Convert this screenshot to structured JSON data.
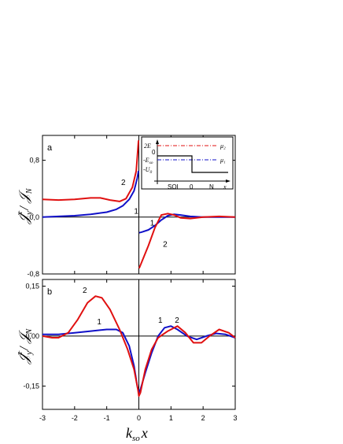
{
  "chart_data": [
    {
      "panel": "a",
      "type": "line",
      "ylabel": "𝒥ʸˣ / 𝒥_N",
      "xlim": [
        -3,
        3
      ],
      "ylim": [
        -0.8,
        1.15
      ],
      "yticks": [
        "-0,8",
        "0,0",
        "0,8"
      ],
      "series": [
        {
          "name": "1",
          "color": "#1010c8",
          "points": [
            [
              -3,
              0.0
            ],
            [
              -2.5,
              0.01
            ],
            [
              -2.0,
              0.02
            ],
            [
              -1.5,
              0.04
            ],
            [
              -1.0,
              0.07
            ],
            [
              -0.7,
              0.11
            ],
            [
              -0.5,
              0.16
            ],
            [
              -0.3,
              0.25
            ],
            [
              -0.15,
              0.37
            ],
            [
              -0.05,
              0.55
            ],
            [
              -0.01,
              0.65
            ],
            [
              0.01,
              -0.22
            ],
            [
              0.1,
              -0.21
            ],
            [
              0.3,
              -0.18
            ],
            [
              0.5,
              -0.12
            ],
            [
              0.7,
              -0.04
            ],
            [
              0.9,
              0.02
            ],
            [
              1.1,
              0.04
            ],
            [
              1.3,
              0.03
            ],
            [
              1.6,
              0.01
            ],
            [
              2.0,
              0.0
            ],
            [
              2.5,
              0.0
            ],
            [
              3.0,
              0.0
            ]
          ]
        },
        {
          "name": "2",
          "color": "#e01010",
          "points": [
            [
              -3,
              0.25
            ],
            [
              -2.5,
              0.24
            ],
            [
              -2.0,
              0.25
            ],
            [
              -1.5,
              0.27
            ],
            [
              -1.2,
              0.27
            ],
            [
              -0.9,
              0.24
            ],
            [
              -0.6,
              0.22
            ],
            [
              -0.4,
              0.26
            ],
            [
              -0.2,
              0.42
            ],
            [
              -0.08,
              0.65
            ],
            [
              -0.01,
              1.08
            ],
            [
              0.01,
              -0.72
            ],
            [
              0.1,
              -0.62
            ],
            [
              0.3,
              -0.4
            ],
            [
              0.5,
              -0.15
            ],
            [
              0.7,
              0.03
            ],
            [
              0.9,
              0.05
            ],
            [
              1.1,
              0.03
            ],
            [
              1.3,
              -0.01
            ],
            [
              1.6,
              -0.02
            ],
            [
              2.0,
              0.0
            ],
            [
              2.5,
              0.01
            ],
            [
              3.0,
              0.0
            ]
          ]
        }
      ],
      "curve_labels": [
        {
          "text": "2",
          "x": -0.55,
          "y": 0.45
        },
        {
          "text": "1",
          "x": -0.15,
          "y": 0.05
        },
        {
          "text": "1",
          "x": 0.35,
          "y": -0.12
        },
        {
          "text": "2",
          "x": 0.75,
          "y": -0.42
        }
      ],
      "inset": {
        "levels": [
          "2E",
          "0",
          "-E",
          "-U"
        ],
        "level_subscripts": [
          "",
          "",
          "so",
          "0"
        ],
        "mu_labels": [
          "μ₂",
          "μ₁"
        ],
        "regions": [
          "SOI",
          "0",
          "N",
          "x"
        ]
      }
    },
    {
      "panel": "b",
      "type": "line",
      "ylabel": "𝒥ʸᶻ / 𝒥_N",
      "xlabel": "k_so x",
      "xlim": [
        -3,
        3
      ],
      "ylim": [
        -0.22,
        0.17
      ],
      "yticks": [
        "0,15",
        "0,00",
        "-0,15"
      ],
      "xticks": [
        "-3",
        "-2",
        "-1",
        "0",
        "1",
        "2",
        "3"
      ],
      "series": [
        {
          "name": "1",
          "color": "#1010c8",
          "points": [
            [
              -3,
              0.005
            ],
            [
              -2.5,
              0.005
            ],
            [
              -2.0,
              0.01
            ],
            [
              -1.5,
              0.015
            ],
            [
              -1.0,
              0.02
            ],
            [
              -0.7,
              0.02
            ],
            [
              -0.5,
              0.01
            ],
            [
              -0.3,
              -0.03
            ],
            [
              -0.15,
              -0.09
            ],
            [
              -0.05,
              -0.15
            ],
            [
              0.0,
              -0.17
            ],
            [
              0.05,
              -0.16
            ],
            [
              0.2,
              -0.11
            ],
            [
              0.4,
              -0.05
            ],
            [
              0.6,
              0.0
            ],
            [
              0.8,
              0.025
            ],
            [
              1.0,
              0.03
            ],
            [
              1.2,
              0.02
            ],
            [
              1.5,
              0.0
            ],
            [
              1.8,
              -0.01
            ],
            [
              2.1,
              0.0
            ],
            [
              2.4,
              0.008
            ],
            [
              2.7,
              0.005
            ],
            [
              3.0,
              -0.005
            ]
          ]
        },
        {
          "name": "2",
          "color": "#e01010",
          "points": [
            [
              -3,
              0.0
            ],
            [
              -2.7,
              -0.005
            ],
            [
              -2.5,
              -0.005
            ],
            [
              -2.2,
              0.01
            ],
            [
              -1.9,
              0.05
            ],
            [
              -1.6,
              0.1
            ],
            [
              -1.35,
              0.12
            ],
            [
              -1.15,
              0.115
            ],
            [
              -0.9,
              0.08
            ],
            [
              -0.6,
              0.02
            ],
            [
              -0.35,
              -0.04
            ],
            [
              -0.15,
              -0.1
            ],
            [
              -0.03,
              -0.16
            ],
            [
              0.0,
              -0.18
            ],
            [
              0.05,
              -0.17
            ],
            [
              0.2,
              -0.1
            ],
            [
              0.4,
              -0.04
            ],
            [
              0.6,
              -0.005
            ],
            [
              0.9,
              0.015
            ],
            [
              1.2,
              0.03
            ],
            [
              1.45,
              0.01
            ],
            [
              1.7,
              -0.02
            ],
            [
              1.95,
              -0.02
            ],
            [
              2.2,
              0.0
            ],
            [
              2.5,
              0.02
            ],
            [
              2.8,
              0.01
            ],
            [
              3.0,
              -0.005
            ]
          ]
        }
      ],
      "curve_labels": [
        {
          "text": "2",
          "x": -1.75,
          "y": 0.13
        },
        {
          "text": "1",
          "x": -1.3,
          "y": 0.035
        },
        {
          "text": "1",
          "x": 0.6,
          "y": 0.04
        },
        {
          "text": "2",
          "x": 1.12,
          "y": 0.04
        }
      ]
    }
  ],
  "panels": {
    "a": {
      "label": "a"
    },
    "b": {
      "label": "b"
    }
  },
  "axis": {
    "ylabel_main": "𝒥",
    "ylabel_sub": "y",
    "ylabel_a_sup": "x",
    "ylabel_b_sup": "z",
    "ylabel_den": "/ 𝒥",
    "ylabel_den_sub": "N",
    "xlabel_main": "k",
    "xlabel_sub": "so",
    "xlabel_var": "x"
  }
}
